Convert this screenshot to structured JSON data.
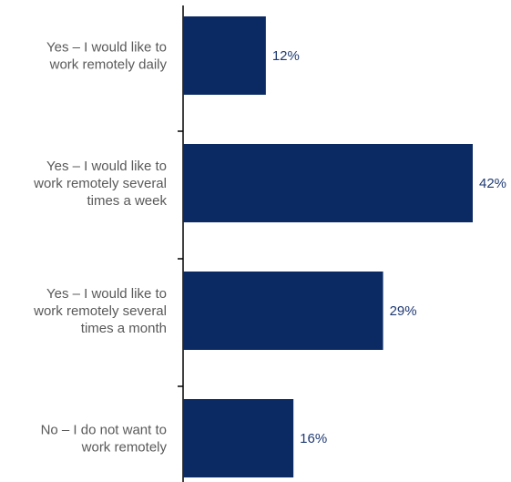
{
  "chart_data": {
    "type": "bar",
    "orientation": "horizontal",
    "categories": [
      [
        "Yes – I would like to",
        "work remotely daily"
      ],
      [
        "Yes – I would like to",
        "work remotely several",
        "times a week"
      ],
      [
        "Yes – I would like to",
        "work remotely several",
        "times a month"
      ],
      [
        "No – I do not want to",
        "work remotely"
      ]
    ],
    "values": [
      12,
      42,
      29,
      16
    ],
    "value_labels": [
      "12%",
      "42%",
      "29%",
      "16%"
    ],
    "unit": "%",
    "xlim": [
      0,
      42
    ],
    "bar_color": "#0b2a63",
    "label_color": "#1f3a73",
    "grid": false,
    "legend": "none"
  }
}
